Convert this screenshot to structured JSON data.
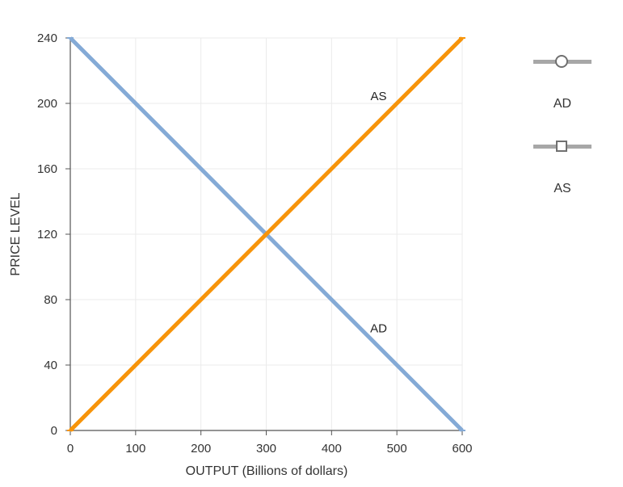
{
  "chart_data": {
    "type": "line",
    "xlabel": "OUTPUT (Billions of dollars)",
    "ylabel": "PRICE LEVEL",
    "xlim": [
      0,
      600
    ],
    "ylim": [
      0,
      240
    ],
    "x_ticks": [
      0,
      100,
      200,
      300,
      400,
      500,
      600
    ],
    "y_ticks": [
      0,
      40,
      80,
      120,
      160,
      200,
      240
    ],
    "grid": true,
    "legend_position": "right",
    "series": [
      {
        "name": "AD",
        "color": "#84aad6",
        "marker": "circle",
        "points": [
          [
            0,
            240
          ],
          [
            600,
            0
          ]
        ],
        "label_at": [
          472,
          60
        ]
      },
      {
        "name": "AS",
        "color": "#f7940a",
        "marker": "square",
        "points": [
          [
            0,
            0
          ],
          [
            600,
            240
          ]
        ],
        "label_at": [
          472,
          202
        ]
      }
    ]
  }
}
